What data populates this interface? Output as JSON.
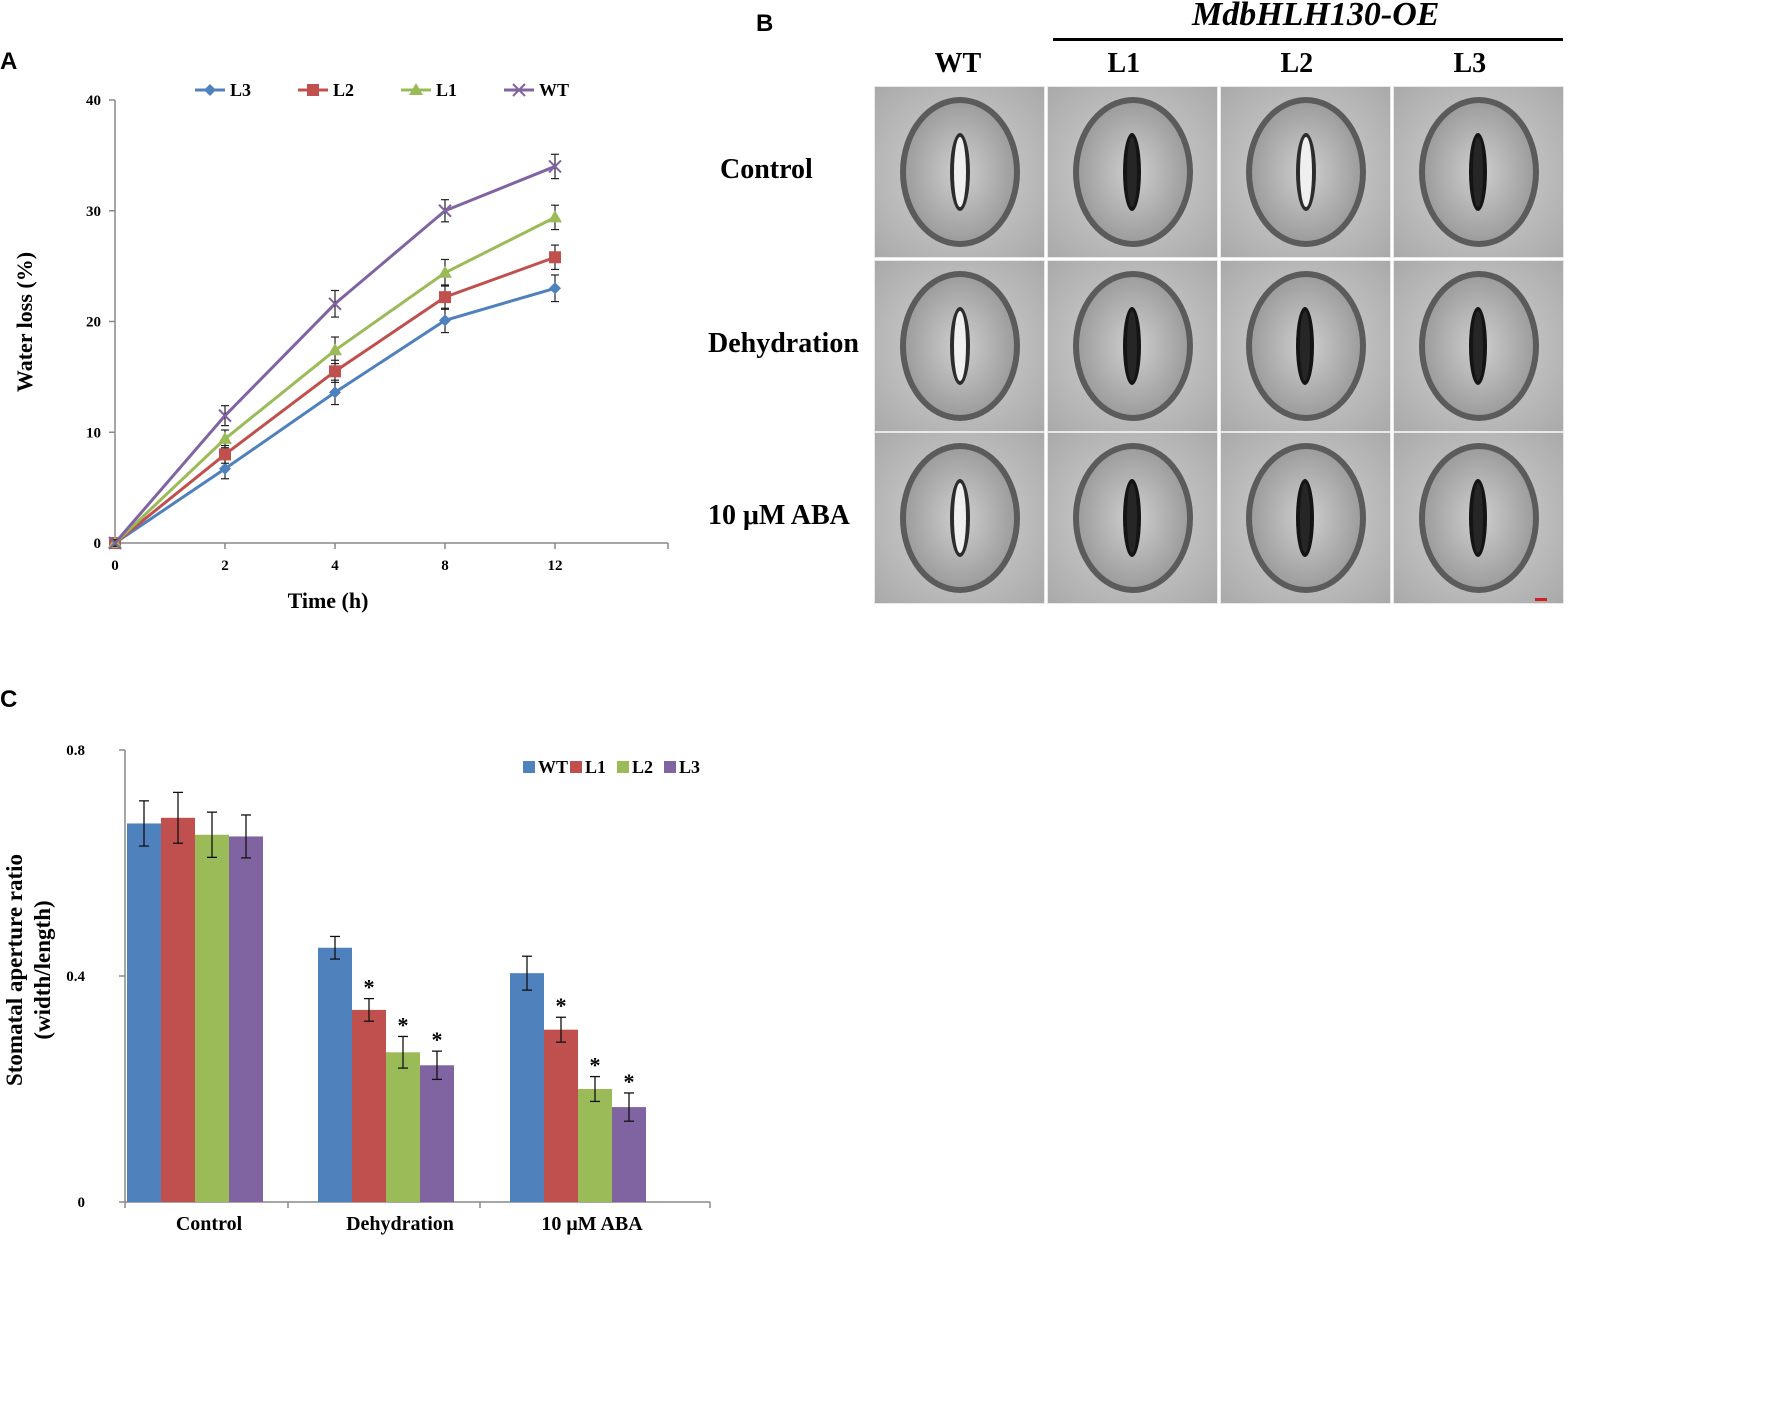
{
  "panels": {
    "A": "A",
    "B": "B",
    "C": "C"
  },
  "colors": {
    "blue": "#4f81bd",
    "red": "#c0504d",
    "green": "#9bbb59",
    "purple": "#8064a2"
  },
  "chart_data": [
    {
      "type": "line",
      "panel": "A",
      "xlabel": "Time (h)",
      "ylabel": "Water loss (%)",
      "categories": [
        "0",
        "2",
        "4",
        "8",
        "12"
      ],
      "ylim": [
        0,
        40
      ],
      "yticks": [
        "0",
        "10",
        "20",
        "30",
        "40"
      ],
      "legend_position": "top",
      "series": [
        {
          "name": "L3",
          "color": "#4f81bd",
          "marker": "diamond",
          "values": [
            0,
            6.7,
            13.6,
            20.1,
            23.0
          ],
          "errors": [
            0.3,
            0.9,
            1.1,
            1.1,
            1.2
          ]
        },
        {
          "name": "L2",
          "color": "#c0504d",
          "marker": "square",
          "values": [
            0,
            8.0,
            15.5,
            22.2,
            25.8
          ],
          "errors": [
            0.3,
            0.8,
            1.0,
            1.1,
            1.1
          ]
        },
        {
          "name": "L1",
          "color": "#9bbb59",
          "marker": "triangle",
          "values": [
            0,
            9.4,
            17.4,
            24.4,
            29.4
          ],
          "errors": [
            0.3,
            0.8,
            1.2,
            1.2,
            1.1
          ]
        },
        {
          "name": "WT",
          "color": "#8064a2",
          "marker": "x",
          "values": [
            0,
            11.5,
            21.6,
            30.0,
            34.0
          ],
          "errors": [
            0.3,
            0.9,
            1.2,
            1.0,
            1.1
          ]
        }
      ]
    },
    {
      "type": "bar",
      "panel": "C",
      "ylabel_line1": "Stomatal aperture ratio",
      "ylabel_line2": "(width/length)",
      "categories": [
        "Control",
        "Dehydration",
        "10 μM  ABA"
      ],
      "ylim": [
        0,
        0.8
      ],
      "yticks": [
        "0",
        "0.4",
        "0.8"
      ],
      "legend_position": "top-right",
      "series": [
        {
          "name": "WT",
          "color": "#4f81bd",
          "values": [
            0.67,
            0.45,
            0.405
          ],
          "errors": [
            0.04,
            0.02,
            0.03
          ],
          "sig": [
            "",
            "",
            ""
          ]
        },
        {
          "name": "L1",
          "color": "#c0504d",
          "values": [
            0.68,
            0.34,
            0.305
          ],
          "errors": [
            0.045,
            0.02,
            0.022
          ],
          "sig": [
            "",
            "*",
            "*"
          ]
        },
        {
          "name": "L2",
          "color": "#9bbb59",
          "values": [
            0.65,
            0.265,
            0.2
          ],
          "errors": [
            0.04,
            0.028,
            0.022
          ],
          "sig": [
            "",
            "*",
            "*"
          ]
        },
        {
          "name": "L3",
          "color": "#8064a2",
          "values": [
            0.647,
            0.242,
            0.168
          ],
          "errors": [
            0.038,
            0.025,
            0.025
          ],
          "sig": [
            "",
            "*",
            "*"
          ]
        }
      ]
    }
  ],
  "panel_b": {
    "title": "MdbHLH130-OE",
    "columns": [
      "WT",
      "L1",
      "L2",
      "L3"
    ],
    "rows": [
      "Control",
      "Dehydration",
      "10 μM  ABA"
    ]
  }
}
